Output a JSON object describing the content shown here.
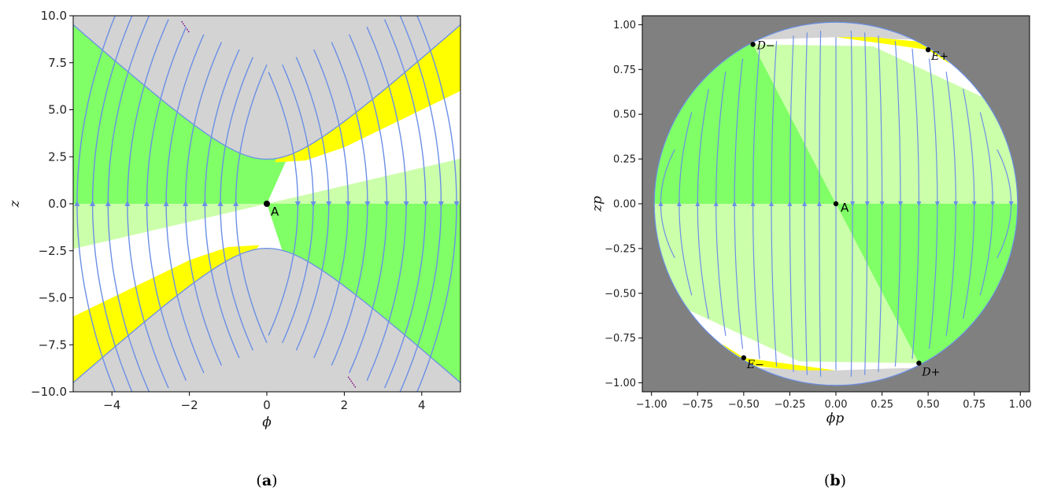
{
  "chart_data": [
    {
      "type": "streamplot",
      "panel_label": "a",
      "caption_open": "(",
      "caption_close": ")",
      "xlabel": "ϕ",
      "ylabel": "z",
      "xlim": [
        -5,
        5
      ],
      "ylim": [
        -10,
        10
      ],
      "xticks": [
        -4,
        -2,
        0,
        2,
        4
      ],
      "xtick_labels": [
        "−4",
        "−2",
        "0",
        "2",
        "4"
      ],
      "yticks": [
        -10,
        -7.5,
        -5,
        -2.5,
        0,
        2.5,
        5,
        7.5,
        10
      ],
      "ytick_labels": [
        "−10.0",
        "−7.5",
        "−5.0",
        "−2.5",
        "0.0",
        "2.5",
        "5.0",
        "7.5",
        "10.0"
      ],
      "points": [
        {
          "label": "A",
          "x": 0,
          "y": 0
        }
      ],
      "region_colors": {
        "forbidden": "#d3d3d3",
        "green": "#80ff66",
        "light_green": "#ccffaa",
        "yellow": "#ffff00",
        "white": "#ffffff"
      },
      "stream_color": "#6b8fe6",
      "boundary_color": "#800080"
    },
    {
      "type": "streamplot",
      "panel_label": "b",
      "caption_open": "(",
      "caption_close": ")",
      "xlabel": "ϕp",
      "ylabel": "zp",
      "xlim": [
        -1.05,
        1.05
      ],
      "ylim": [
        -1.05,
        1.05
      ],
      "xticks": [
        -1,
        -0.75,
        -0.5,
        -0.25,
        0,
        0.25,
        0.5,
        0.75,
        1
      ],
      "xtick_labels": [
        "−1.00",
        "−0.75",
        "−0.50",
        "−0.25",
        "0.00",
        "0.25",
        "0.50",
        "0.75",
        "1.00"
      ],
      "yticks": [
        -1,
        -0.75,
        -0.5,
        -0.25,
        0,
        0.25,
        0.5,
        0.75,
        1
      ],
      "ytick_labels": [
        "−1.00",
        "−0.75",
        "−0.50",
        "−0.25",
        "0.00",
        "0.25",
        "0.50",
        "0.75",
        "1.00"
      ],
      "points": [
        {
          "label": "A",
          "x": 0,
          "y": 0
        },
        {
          "label": "D−",
          "x": -0.45,
          "y": 0.89
        },
        {
          "label": "E+",
          "x": 0.5,
          "y": 0.86
        },
        {
          "label": "E−",
          "x": -0.5,
          "y": -0.86
        },
        {
          "label": "D+",
          "x": 0.45,
          "y": -0.89
        }
      ],
      "region_colors": {
        "background": "#808080",
        "forbidden": "#d3d3d3",
        "green": "#80ff66",
        "light_green": "#ccffaa",
        "yellow": "#ffff00",
        "white": "#ffffff"
      },
      "stream_color": "#6b8fe6"
    }
  ]
}
